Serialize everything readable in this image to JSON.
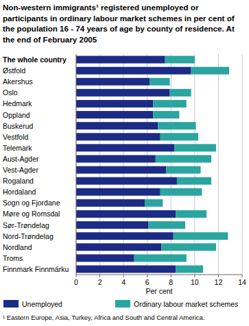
{
  "chart_data": {
    "type": "bar",
    "orientation": "horizontal",
    "stacked": true,
    "grid": true,
    "legend": "bottom",
    "title": "Non-western immigrants¹ registered unemployed or participants in ordinary labour market schemes in per cent of the population 16 - 74 years of age by county of residence. At the end of February 2005",
    "x_label": "Per cent",
    "annotations": [
      "¹ Eastern Europe, Asia, Turkey, Africa and South and Central America."
    ],
    "categories": [
      "The whole country",
      "Østfold",
      "Akershus",
      "Oslo",
      "Hedmark",
      "Oppland",
      "Buskerud",
      "Vestfold",
      "Telemark",
      "Aust-Agder",
      "Vest-Agder",
      "Rogaland",
      "Hordaland",
      "Sogn og Fjordane",
      "Møre og Romsdal",
      "Sør-Trøndelag",
      "Nord-Trøndelag",
      "Nordland",
      "Troms",
      "Finnmark Finnmárku"
    ],
    "series": [
      {
        "name": "Unemployed",
        "color": "#1c2b85",
        "values": [
          7.5,
          9.7,
          6.2,
          7.9,
          6.5,
          6.5,
          6.9,
          7.1,
          8.3,
          6.7,
          7.6,
          8.5,
          7.1,
          5.8,
          8.4,
          6.1,
          8.2,
          7.2,
          4.9,
          8.4
        ]
      },
      {
        "name": "Ordinary labour market schemes",
        "color": "#2aa5a0",
        "values": [
          2.5,
          3.2,
          1.7,
          1.8,
          2.8,
          2.2,
          3.2,
          3.2,
          3.5,
          4.7,
          2.9,
          2.9,
          3.5,
          1.5,
          2.6,
          3.1,
          4.6,
          4.6,
          4.4,
          2.3
        ]
      }
    ],
    "xlim": [
      0,
      14
    ],
    "xticks": [
      0,
      2,
      4,
      6,
      8,
      10,
      12,
      14
    ]
  }
}
